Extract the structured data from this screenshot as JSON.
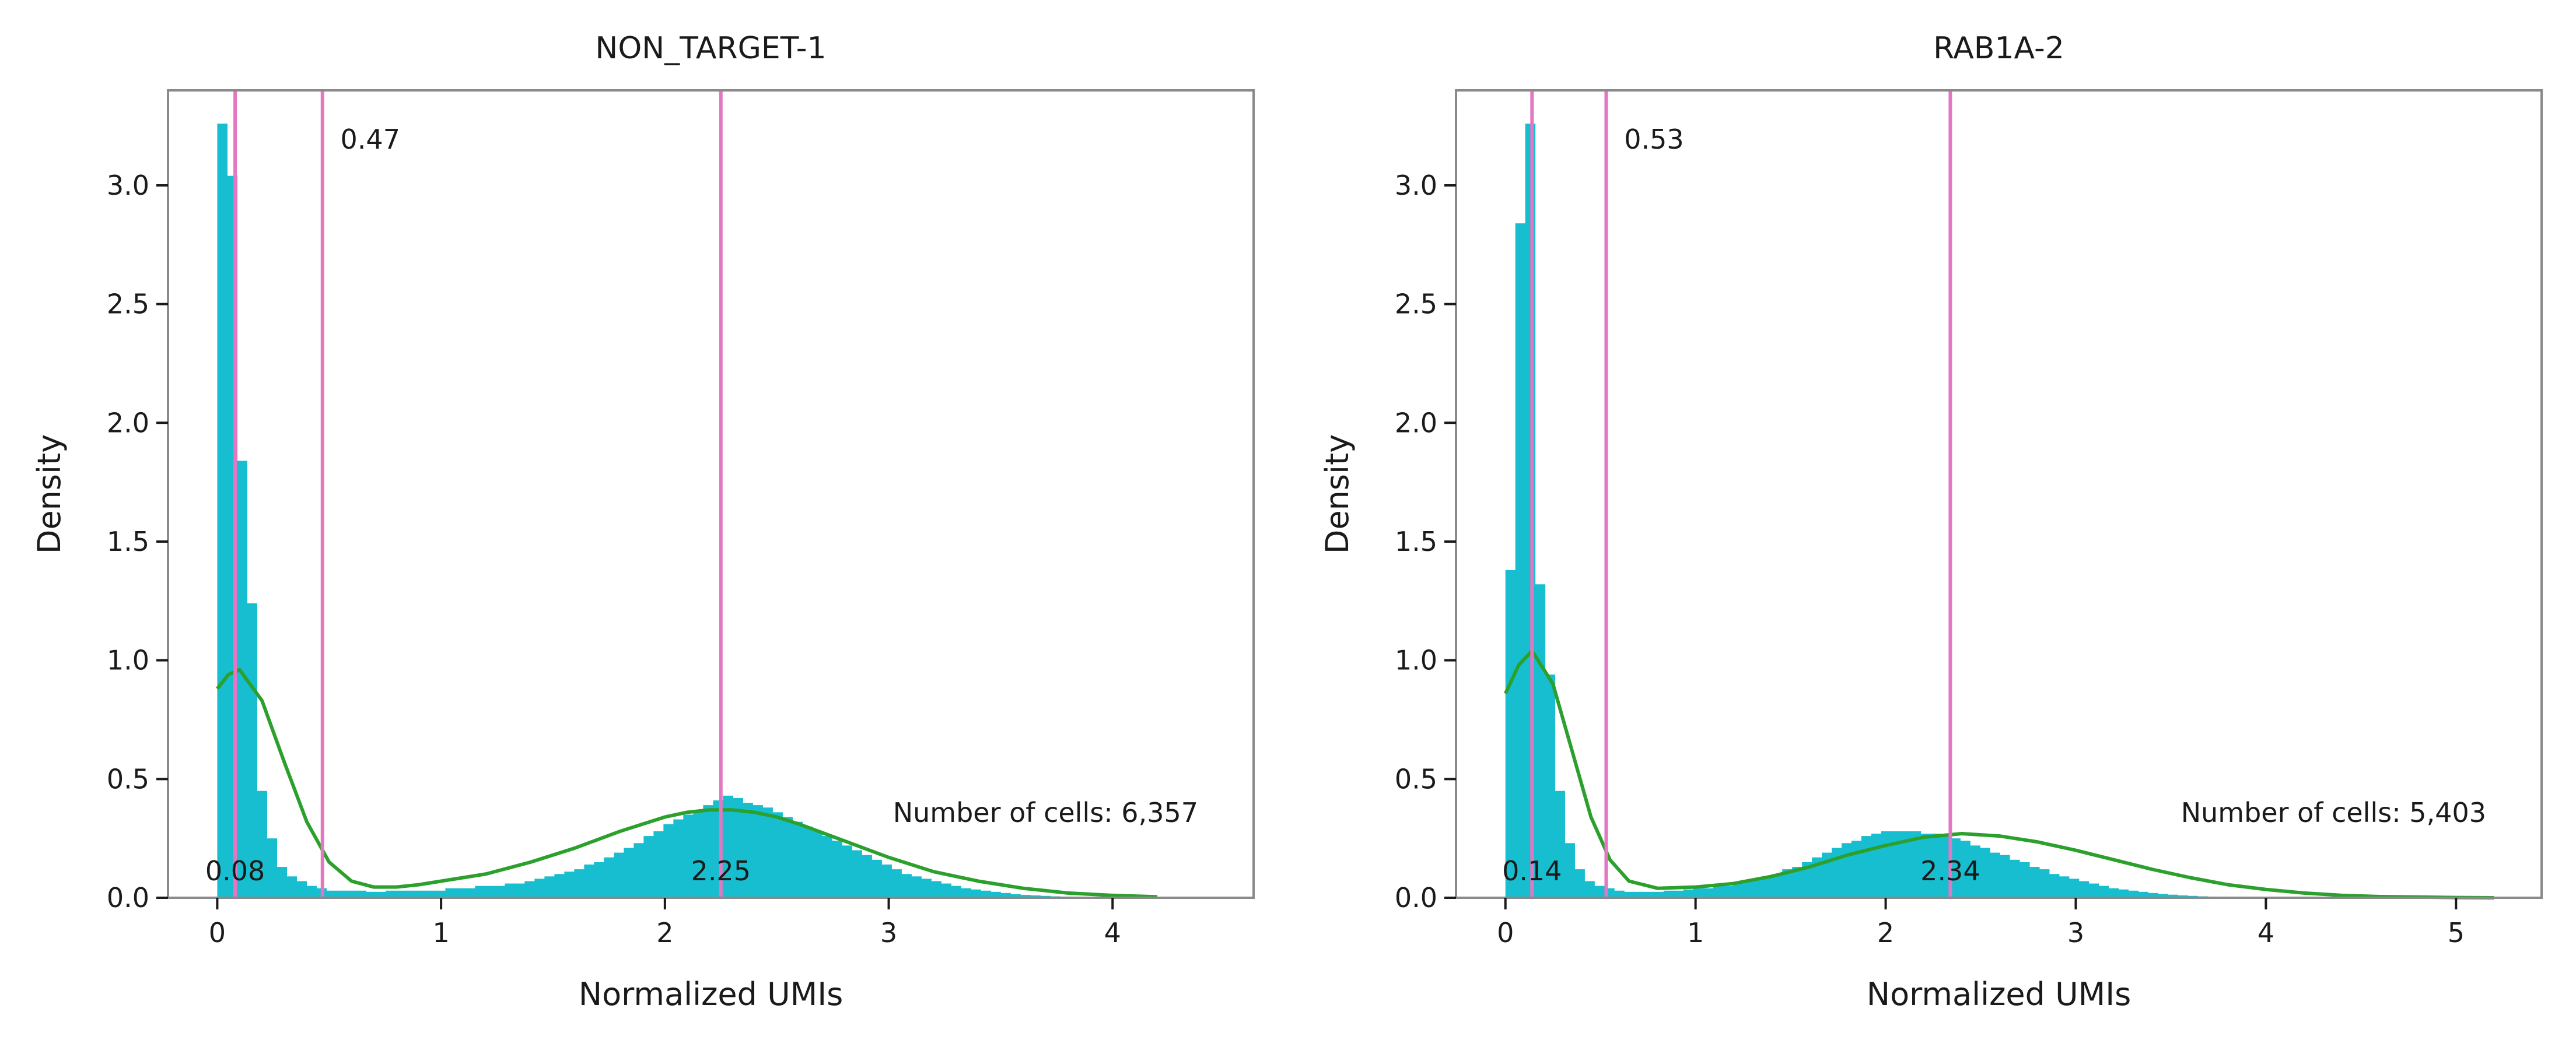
{
  "chart_data": [
    {
      "type": "histogram",
      "title": "NON_TARGET-1",
      "xlabel": "Normalized UMIs",
      "ylabel": "Density",
      "xlim": [
        -0.22,
        4.63
      ],
      "ylim": [
        0,
        3.4
      ],
      "xticks": [
        0,
        1,
        2,
        3,
        4
      ],
      "xtick_labels": [
        "0",
        "1",
        "2",
        "3",
        "4"
      ],
      "yticks": [
        0,
        0.5,
        1,
        1.5,
        2,
        2.5,
        3
      ],
      "ytick_labels": [
        "0.0",
        "0.5",
        "1.0",
        "1.5",
        "2.0",
        "2.5",
        "3.0"
      ],
      "grid": false,
      "bin_start": 0,
      "bin_width": 0.0443,
      "bar_color": "#17becf",
      "bars": [
        3.26,
        3.04,
        1.84,
        1.24,
        0.45,
        0.25,
        0.13,
        0.09,
        0.07,
        0.05,
        0.04,
        0.03,
        0.03,
        0.03,
        0.03,
        0.025,
        0.025,
        0.03,
        0.03,
        0.03,
        0.03,
        0.03,
        0.03,
        0.04,
        0.04,
        0.04,
        0.05,
        0.05,
        0.05,
        0.06,
        0.06,
        0.07,
        0.08,
        0.09,
        0.1,
        0.11,
        0.12,
        0.14,
        0.15,
        0.17,
        0.19,
        0.21,
        0.23,
        0.26,
        0.28,
        0.31,
        0.33,
        0.35,
        0.37,
        0.39,
        0.41,
        0.43,
        0.42,
        0.4,
        0.39,
        0.38,
        0.36,
        0.34,
        0.32,
        0.3,
        0.28,
        0.26,
        0.24,
        0.22,
        0.2,
        0.18,
        0.16,
        0.14,
        0.12,
        0.1,
        0.09,
        0.08,
        0.07,
        0.06,
        0.05,
        0.04,
        0.035,
        0.03,
        0.025,
        0.02,
        0.015,
        0.012,
        0.01,
        0.008,
        0.006,
        0.005,
        0.004,
        0.003,
        0.002,
        0.002,
        0.001,
        0.001,
        0.001,
        0.001,
        0.001,
        0.001,
        0.001,
        0.001,
        0.001,
        0.001
      ],
      "kde_color": "#2ca02c",
      "kde": {
        "x": [
          0,
          0.05,
          0.1,
          0.2,
          0.3,
          0.4,
          0.5,
          0.6,
          0.7,
          0.8,
          0.9,
          1.0,
          1.2,
          1.4,
          1.6,
          1.8,
          2.0,
          2.1,
          2.2,
          2.3,
          2.4,
          2.5,
          2.6,
          2.8,
          3.0,
          3.2,
          3.4,
          3.6,
          3.8,
          4.0,
          4.2
        ],
        "y": [
          0.88,
          0.94,
          0.96,
          0.83,
          0.57,
          0.32,
          0.15,
          0.07,
          0.045,
          0.045,
          0.055,
          0.07,
          0.1,
          0.15,
          0.21,
          0.28,
          0.34,
          0.36,
          0.37,
          0.37,
          0.36,
          0.34,
          0.31,
          0.24,
          0.17,
          0.11,
          0.07,
          0.04,
          0.02,
          0.01,
          0.004
        ]
      },
      "vline_color": "#e377c2",
      "vlines": [
        {
          "x": 0.08,
          "label": "0.08",
          "label_pos": "bottom"
        },
        {
          "x": 0.47,
          "label": "0.47",
          "label_pos": "top"
        },
        {
          "x": 2.25,
          "label": "2.25",
          "label_pos": "bottom"
        }
      ],
      "annotation": "Number of cells: 6,357"
    },
    {
      "type": "histogram",
      "title": "RAB1A-2",
      "xlabel": "Normalized UMIs",
      "ylabel": "Density",
      "xlim": [
        -0.26,
        5.45
      ],
      "ylim": [
        0,
        3.4
      ],
      "xticks": [
        0,
        1,
        2,
        3,
        4,
        5
      ],
      "xtick_labels": [
        "0",
        "1",
        "2",
        "3",
        "4",
        "5"
      ],
      "yticks": [
        0,
        0.5,
        1,
        1.5,
        2,
        2.5,
        3
      ],
      "ytick_labels": [
        "0.0",
        "0.5",
        "1.0",
        "1.5",
        "2.0",
        "2.5",
        "3.0"
      ],
      "grid": false,
      "bin_start": 0,
      "bin_width": 0.052,
      "bar_color": "#17becf",
      "bars": [
        1.38,
        2.84,
        3.26,
        1.32,
        0.94,
        0.45,
        0.23,
        0.12,
        0.07,
        0.05,
        0.04,
        0.03,
        0.025,
        0.025,
        0.025,
        0.025,
        0.03,
        0.03,
        0.035,
        0.04,
        0.04,
        0.05,
        0.05,
        0.06,
        0.07,
        0.08,
        0.09,
        0.1,
        0.12,
        0.13,
        0.15,
        0.17,
        0.19,
        0.21,
        0.23,
        0.24,
        0.26,
        0.27,
        0.28,
        0.28,
        0.28,
        0.28,
        0.27,
        0.27,
        0.26,
        0.25,
        0.24,
        0.22,
        0.21,
        0.19,
        0.18,
        0.16,
        0.15,
        0.13,
        0.12,
        0.1,
        0.09,
        0.08,
        0.07,
        0.06,
        0.05,
        0.04,
        0.035,
        0.03,
        0.025,
        0.02,
        0.016,
        0.013,
        0.01,
        0.008,
        0.006,
        0.005,
        0.004,
        0.003,
        0.002,
        0.002,
        0.001,
        0.001,
        0.001,
        0.001,
        0.001,
        0.001,
        0.001,
        0.001,
        0.001,
        0.001,
        0.001,
        0.001,
        0.001,
        0.001,
        0.001,
        0.001,
        0.001,
        0.001,
        0.001,
        0.001,
        0.001,
        0.001,
        0.001,
        0.001
      ],
      "kde_color": "#2ca02c",
      "kde": {
        "x": [
          0,
          0.07,
          0.14,
          0.25,
          0.35,
          0.45,
          0.55,
          0.65,
          0.8,
          1.0,
          1.2,
          1.4,
          1.6,
          1.8,
          2.0,
          2.2,
          2.4,
          2.6,
          2.8,
          3.0,
          3.2,
          3.4,
          3.6,
          3.8,
          4.0,
          4.2,
          4.4,
          4.6,
          4.8,
          5.0,
          5.2
        ],
        "y": [
          0.86,
          0.98,
          1.04,
          0.9,
          0.62,
          0.34,
          0.16,
          0.07,
          0.04,
          0.045,
          0.06,
          0.09,
          0.13,
          0.18,
          0.22,
          0.255,
          0.27,
          0.26,
          0.235,
          0.2,
          0.16,
          0.12,
          0.085,
          0.055,
          0.035,
          0.02,
          0.01,
          0.005,
          0.003,
          0.001,
          0.0
        ]
      },
      "vline_color": "#e377c2",
      "vlines": [
        {
          "x": 0.14,
          "label": "0.14",
          "label_pos": "bottom"
        },
        {
          "x": 0.53,
          "label": "0.53",
          "label_pos": "top"
        },
        {
          "x": 2.34,
          "label": "2.34",
          "label_pos": "bottom"
        }
      ],
      "annotation": "Number of cells: 5,403"
    }
  ]
}
